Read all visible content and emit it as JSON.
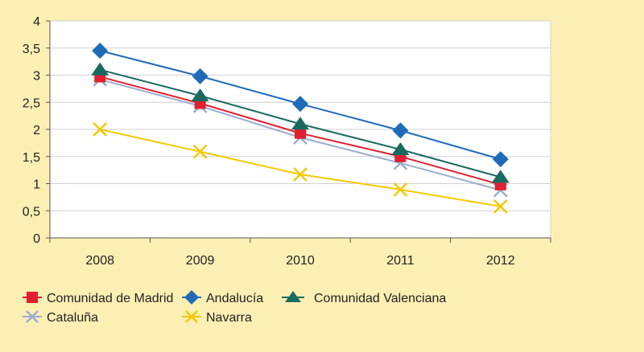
{
  "chart_data": {
    "type": "line",
    "title": "",
    "xlabel": "",
    "ylabel": "",
    "categories": [
      "2008",
      "2009",
      "2010",
      "2011",
      "2012"
    ],
    "ylim": [
      0,
      4
    ],
    "yticks": [
      "0",
      "0,5",
      "1",
      "1,5",
      "2",
      "2,5",
      "3",
      "3,5",
      "4"
    ],
    "grid": true,
    "legend_position": "bottom",
    "series": [
      {
        "name": "Andalucía",
        "color": "#1e6bb8",
        "marker": "diamond",
        "values": [
          3.45,
          2.98,
          2.47,
          1.98,
          1.45
        ]
      },
      {
        "name": "Comunidad Valenciana",
        "color": "#1a6a60",
        "marker": "triangle",
        "values": [
          3.1,
          2.62,
          2.1,
          1.63,
          1.12
        ]
      },
      {
        "name": "Comunidad de Madrid",
        "color": "#e02030",
        "marker": "square",
        "values": [
          2.97,
          2.48,
          1.93,
          1.5,
          0.98
        ]
      },
      {
        "name": "Cataluña",
        "color": "#9aaed0",
        "marker": "x",
        "values": [
          2.92,
          2.43,
          1.85,
          1.38,
          0.88
        ]
      },
      {
        "name": "Navarra",
        "color": "#f5c800",
        "marker": "x",
        "values": [
          2.0,
          1.59,
          1.17,
          0.89,
          0.58
        ]
      }
    ]
  },
  "legend": {
    "madrid": "Comunidad de Madrid",
    "andalucia": "Andalucía",
    "valenciana": "Comunidad Valenciana",
    "cataluna": "Cataluña",
    "navarra": "Navarra"
  }
}
